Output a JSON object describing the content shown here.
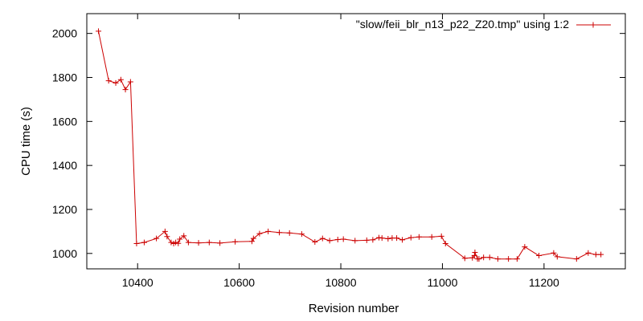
{
  "chart_data": {
    "type": "line",
    "xlabel": "Revision number",
    "ylabel": "CPU time (s)",
    "xlim": [
      10300,
      11360
    ],
    "ylim": [
      930,
      2090
    ],
    "xticks": [
      10400,
      10600,
      10800,
      11000,
      11200
    ],
    "yticks": [
      1000,
      1200,
      1400,
      1600,
      1800,
      2000
    ],
    "grid": false,
    "legend_position": "top-right",
    "series": [
      {
        "name": "\"slow/feii_blr_n13_p22_Z20.tmp\" using 1:2",
        "color": "#cc0000",
        "marker": "plus",
        "x": [
          10323,
          10343,
          10357,
          10367,
          10376,
          10386,
          10398,
          10413,
          10437,
          10454,
          10458,
          10466,
          10471,
          10475,
          10480,
          10483,
          10491,
          10500,
          10520,
          10541,
          10562,
          10592,
          10625,
          10628,
          10640,
          10657,
          10679,
          10699,
          10723,
          10749,
          10764,
          10778,
          10794,
          10805,
          10828,
          10851,
          10863,
          10875,
          10881,
          10893,
          10901,
          10910,
          10921,
          10938,
          10954,
          10979,
          10998,
          11006,
          11044,
          11059,
          11063,
          11064,
          11069,
          11072,
          11081,
          11093,
          11109,
          11130,
          11147,
          11162,
          11190,
          11219,
          11226,
          11264,
          11287,
          11302,
          11312
        ],
        "y": [
          2010,
          1785,
          1775,
          1790,
          1745,
          1780,
          1045,
          1050,
          1068,
          1100,
          1077,
          1050,
          1045,
          1050,
          1046,
          1065,
          1080,
          1050,
          1048,
          1050,
          1047,
          1053,
          1055,
          1068,
          1090,
          1100,
          1095,
          1093,
          1088,
          1052,
          1068,
          1058,
          1063,
          1065,
          1058,
          1060,
          1062,
          1072,
          1070,
          1067,
          1070,
          1070,
          1062,
          1072,
          1075,
          1075,
          1078,
          1045,
          978,
          980,
          990,
          1005,
          975,
          975,
          982,
          982,
          975,
          975,
          975,
          1030,
          990,
          1002,
          985,
          975,
          1002,
          995,
          995
        ]
      }
    ]
  }
}
